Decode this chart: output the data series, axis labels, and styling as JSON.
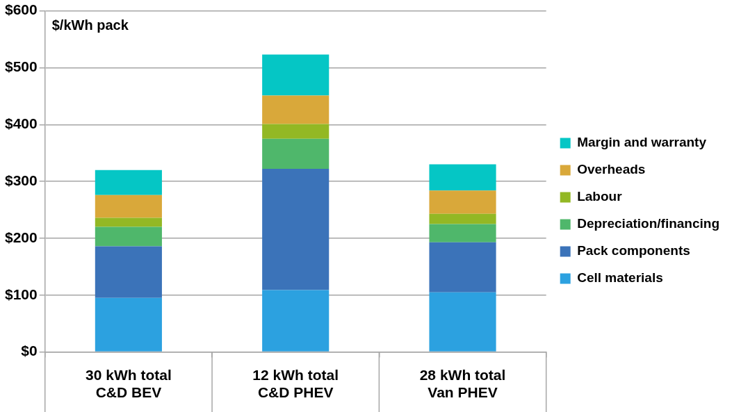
{
  "chart_data": {
    "type": "bar",
    "ylabel": "$/kWh pack",
    "stacked": true,
    "categories": [
      "30 kWh total\nC&D BEV",
      "12 kWh total\nC&D PHEV",
      "28 kWh total\nVan PHEV"
    ],
    "series": [
      {
        "name": "Cell materials",
        "color": "#2ca1e0",
        "values": [
          95,
          109,
          105
        ]
      },
      {
        "name": "Pack components",
        "color": "#3b73b9",
        "values": [
          91,
          213,
          88
        ]
      },
      {
        "name": "Depreciation/financing",
        "color": "#4fb76b",
        "values": [
          34,
          53,
          32
        ]
      },
      {
        "name": "Labour",
        "color": "#93b824",
        "values": [
          16,
          26,
          18
        ]
      },
      {
        "name": "Overheads",
        "color": "#d9a83a",
        "values": [
          40,
          50,
          41
        ]
      },
      {
        "name": "Margin and warranty",
        "color": "#05c6c5",
        "values": [
          44,
          72,
          46
        ]
      }
    ],
    "ylim": [
      0,
      600
    ],
    "yticks": [
      {
        "value": 0,
        "label": "$0"
      },
      {
        "value": 100,
        "label": "$100"
      },
      {
        "value": 200,
        "label": "$200"
      },
      {
        "value": 300,
        "label": "$300"
      },
      {
        "value": 400,
        "label": "$400"
      },
      {
        "value": 500,
        "label": "$500"
      },
      {
        "value": 600,
        "label": "$600"
      }
    ],
    "grid": "y",
    "legend": "right"
  }
}
